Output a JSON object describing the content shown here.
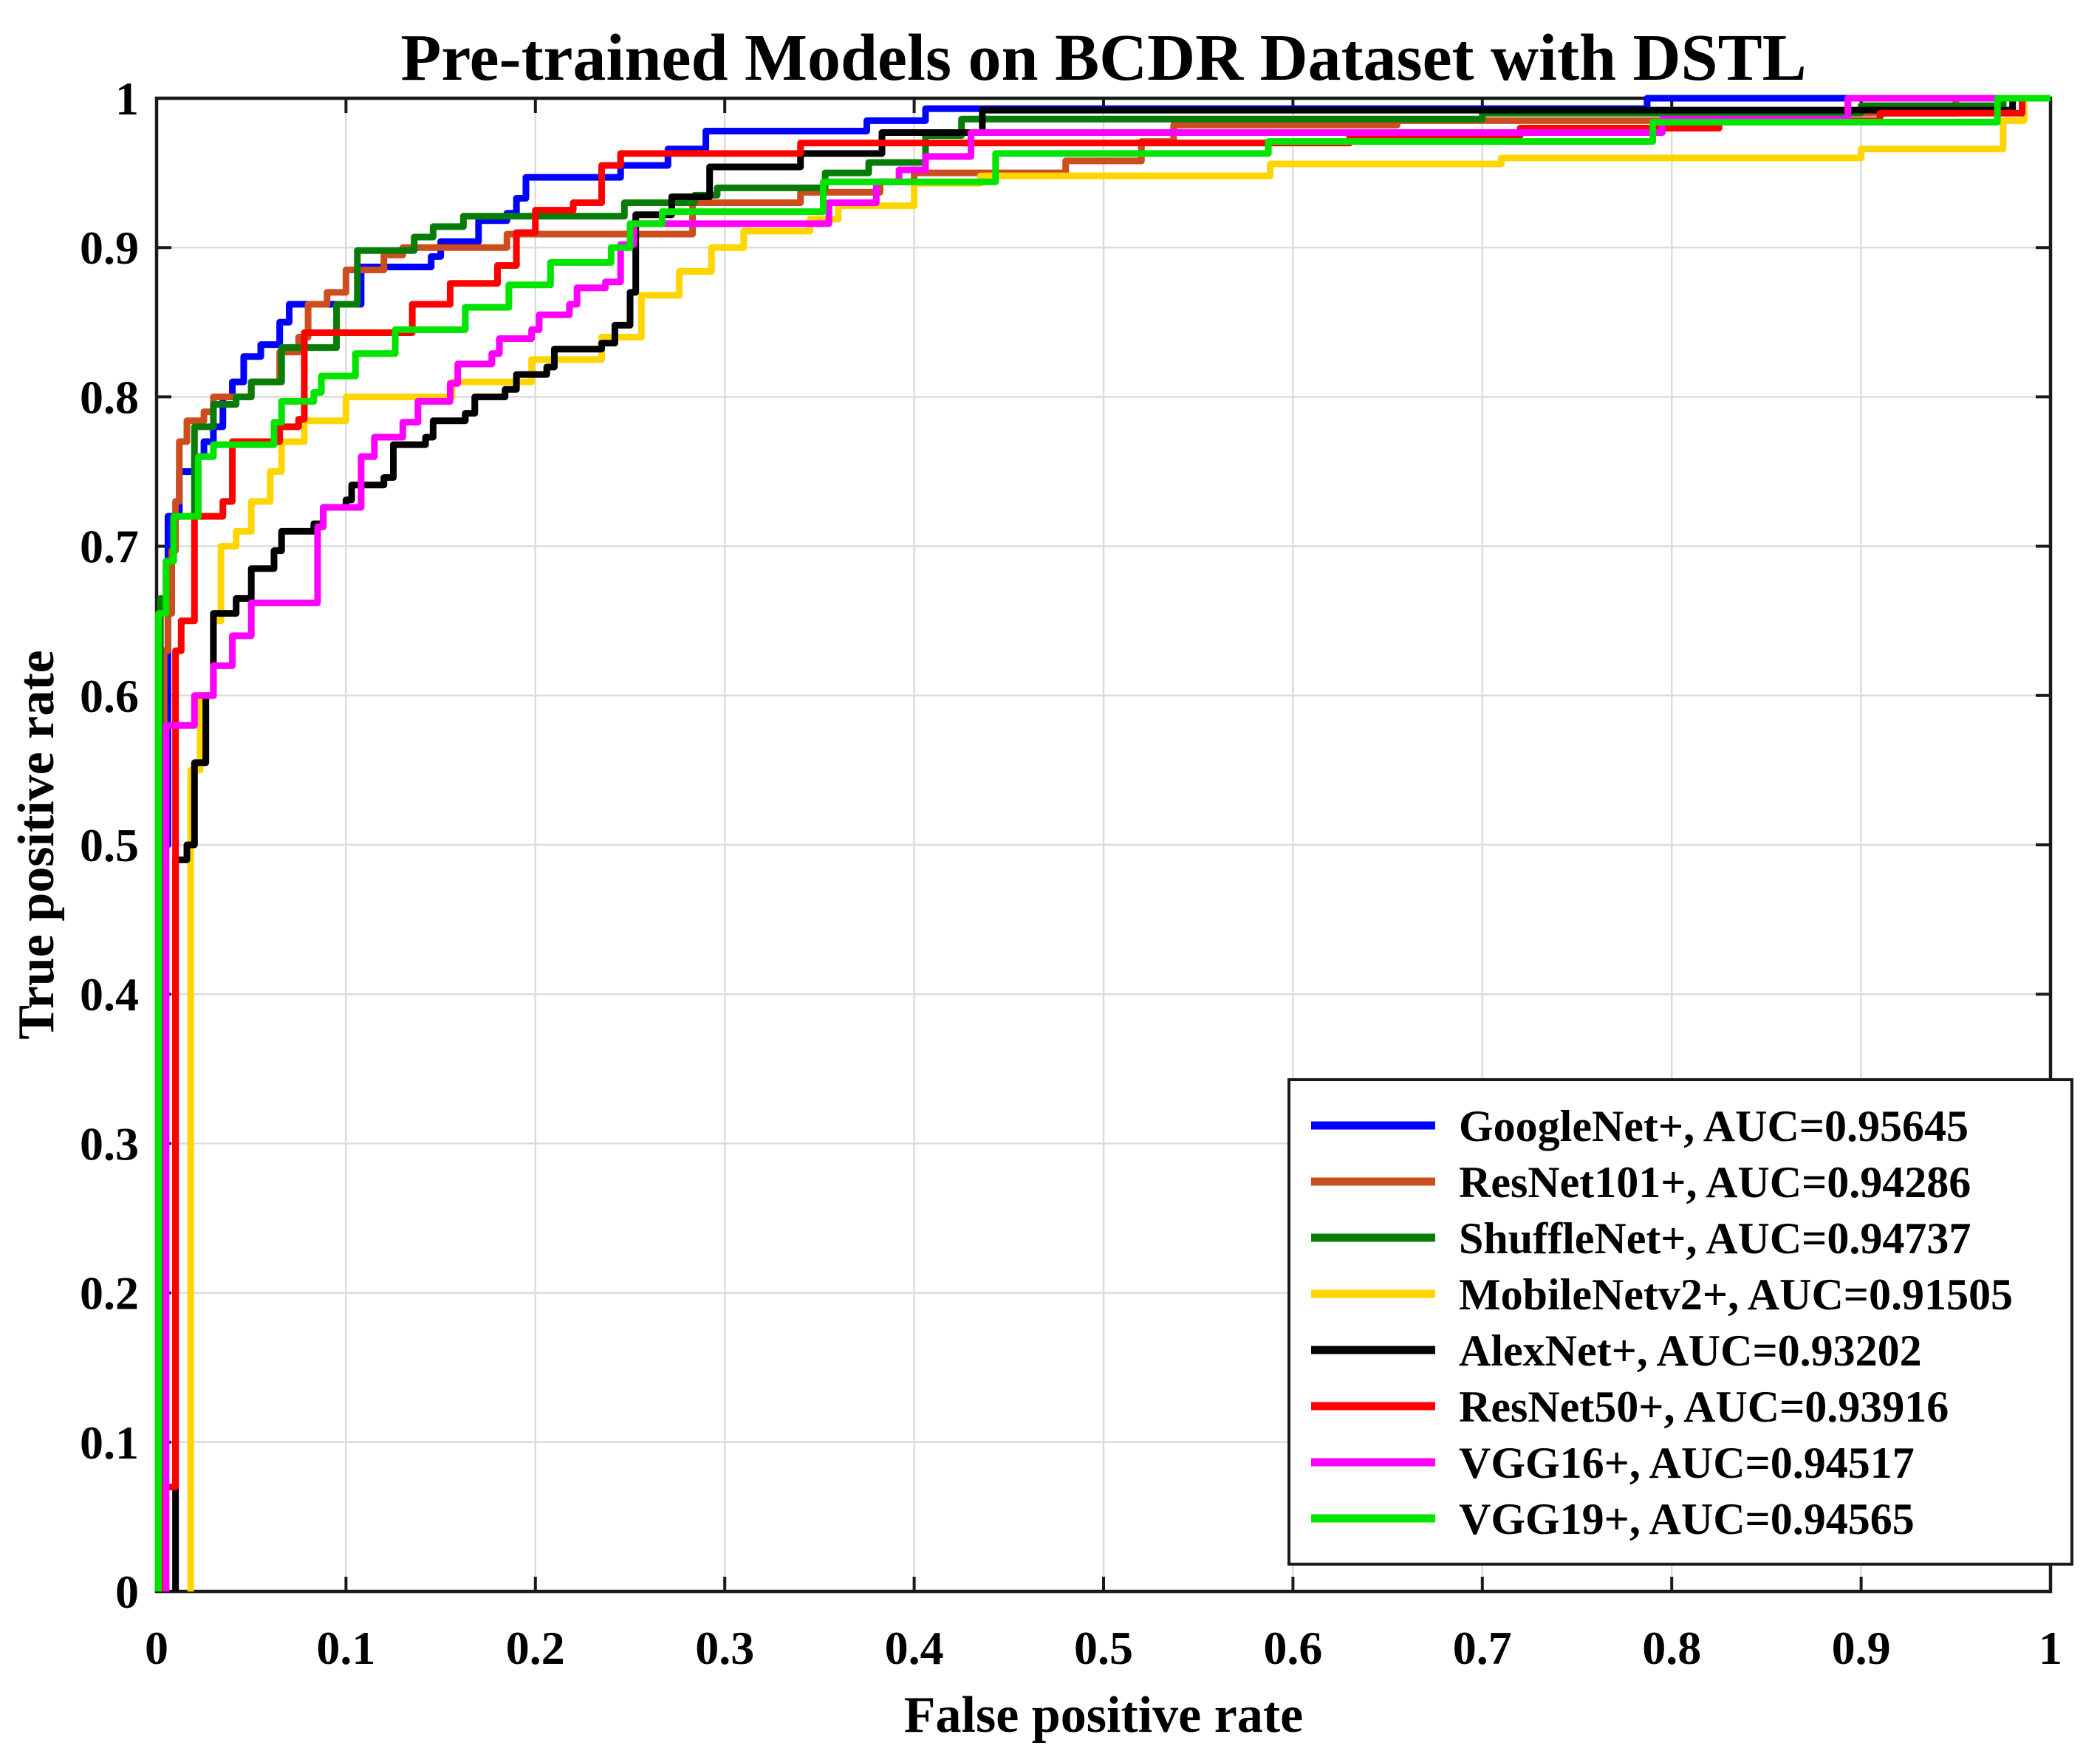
{
  "chart_data": {
    "type": "line",
    "variant": "roc-step-curves",
    "title": "Pre-trained Models on BCDR Dataset with DSTL",
    "xlabel": "False positive rate",
    "ylabel": "True positive rate",
    "xlim": [
      0,
      1
    ],
    "ylim": [
      0,
      1
    ],
    "grid": true,
    "grid_color": "#DCDCDC",
    "axis_color": "#1A1A1A",
    "background_color": "#FFFFFF",
    "legend_position": "lower-right",
    "xtick_labels": [
      "0",
      "0.1",
      "0.2",
      "0.3",
      "0.4",
      "0.5",
      "0.6",
      "0.7",
      "0.8",
      "0.9",
      "1"
    ],
    "ytick_labels": [
      "0",
      "0.1",
      "0.2",
      "0.3",
      "0.4",
      "0.5",
      "0.6",
      "0.7",
      "0.8",
      "0.9",
      "1"
    ],
    "xticks": [
      0,
      0.1,
      0.2,
      0.3,
      0.4,
      0.5,
      0.6,
      0.7,
      0.8,
      0.9,
      1
    ],
    "yticks": [
      0,
      0.1,
      0.2,
      0.3,
      0.4,
      0.5,
      0.6,
      0.7,
      0.8,
      0.9,
      1
    ],
    "series": [
      {
        "name": "GoogleNet+",
        "auc": "0.95645",
        "label": "GoogleNet+, AUC=0.95645",
        "color": "#0000FF",
        "points": [
          [
            0.003,
            0
          ],
          [
            0.003,
            0.5
          ],
          [
            0.006,
            0.72
          ],
          [
            0.012,
            0.75
          ],
          [
            0.02,
            0.76
          ],
          [
            0.025,
            0.77
          ],
          [
            0.03,
            0.78
          ],
          [
            0.035,
            0.8
          ],
          [
            0.04,
            0.81
          ],
          [
            0.046,
            0.827
          ],
          [
            0.055,
            0.835
          ],
          [
            0.065,
            0.85
          ],
          [
            0.07,
            0.862
          ],
          [
            0.108,
            0.887
          ],
          [
            0.145,
            0.894
          ],
          [
            0.15,
            0.904
          ],
          [
            0.17,
            0.918
          ],
          [
            0.185,
            0.923
          ],
          [
            0.19,
            0.933
          ],
          [
            0.195,
            0.947
          ],
          [
            0.245,
            0.955
          ],
          [
            0.27,
            0.966
          ],
          [
            0.29,
            0.978
          ],
          [
            0.375,
            0.985
          ],
          [
            0.406,
            0.993
          ],
          [
            0.787,
            1
          ]
        ]
      },
      {
        "name": "ResNet101+",
        "auc": "0.94286",
        "label": "ResNet101+, AUC=0.94286",
        "color": "#CC4E1F",
        "points": [
          [
            0.004,
            0
          ],
          [
            0.004,
            0.63
          ],
          [
            0.006,
            0.655
          ],
          [
            0.008,
            0.697
          ],
          [
            0.01,
            0.73
          ],
          [
            0.012,
            0.77
          ],
          [
            0.016,
            0.784
          ],
          [
            0.025,
            0.79
          ],
          [
            0.03,
            0.8
          ],
          [
            0.05,
            0.81
          ],
          [
            0.065,
            0.83
          ],
          [
            0.075,
            0.84
          ],
          [
            0.08,
            0.862
          ],
          [
            0.09,
            0.87
          ],
          [
            0.1,
            0.885
          ],
          [
            0.12,
            0.895
          ],
          [
            0.13,
            0.9
          ],
          [
            0.185,
            0.909
          ],
          [
            0.283,
            0.93
          ],
          [
            0.34,
            0.937
          ],
          [
            0.382,
            0.944
          ],
          [
            0.4,
            0.95
          ],
          [
            0.48,
            0.958
          ],
          [
            0.52,
            0.971
          ],
          [
            0.537,
            0.982
          ],
          [
            0.655,
            0.985
          ],
          [
            0.83,
            0.99
          ],
          [
            0.95,
            1
          ]
        ]
      },
      {
        "name": "ShuffleNet+",
        "auc": "0.94737",
        "label": "ShuffleNet+, AUC=0.94737",
        "color": "#077D07",
        "points": [
          [
            0.002,
            0
          ],
          [
            0.002,
            0.665
          ],
          [
            0.005,
            0.69
          ],
          [
            0.009,
            0.72
          ],
          [
            0.02,
            0.78
          ],
          [
            0.03,
            0.795
          ],
          [
            0.042,
            0.8
          ],
          [
            0.05,
            0.81
          ],
          [
            0.066,
            0.833
          ],
          [
            0.095,
            0.862
          ],
          [
            0.106,
            0.898
          ],
          [
            0.136,
            0.907
          ],
          [
            0.146,
            0.914
          ],
          [
            0.162,
            0.921
          ],
          [
            0.247,
            0.93
          ],
          [
            0.284,
            0.935
          ],
          [
            0.296,
            0.94
          ],
          [
            0.353,
            0.95
          ],
          [
            0.376,
            0.957
          ],
          [
            0.406,
            0.975
          ],
          [
            0.425,
            0.986
          ],
          [
            0.7,
            0.99
          ],
          [
            0.9,
            0.995
          ],
          [
            0.975,
            1
          ]
        ]
      },
      {
        "name": "MobileNetv2+",
        "auc": "0.91505",
        "label": "MobileNetv2+, AUC=0.91505",
        "color": "#FFD500",
        "points": [
          [
            0.018,
            0
          ],
          [
            0.018,
            0.55
          ],
          [
            0.023,
            0.6
          ],
          [
            0.03,
            0.65
          ],
          [
            0.034,
            0.7
          ],
          [
            0.042,
            0.71
          ],
          [
            0.05,
            0.73
          ],
          [
            0.06,
            0.75
          ],
          [
            0.066,
            0.77
          ],
          [
            0.078,
            0.784
          ],
          [
            0.1,
            0.8
          ],
          [
            0.156,
            0.81
          ],
          [
            0.198,
            0.825
          ],
          [
            0.235,
            0.84
          ],
          [
            0.256,
            0.868
          ],
          [
            0.276,
            0.884
          ],
          [
            0.293,
            0.9
          ],
          [
            0.31,
            0.911
          ],
          [
            0.345,
            0.919
          ],
          [
            0.36,
            0.928
          ],
          [
            0.4,
            0.943
          ],
          [
            0.435,
            0.948
          ],
          [
            0.588,
            0.956
          ],
          [
            0.71,
            0.96
          ],
          [
            0.9,
            0.966
          ],
          [
            0.975,
            0.985
          ],
          [
            0.986,
            1
          ]
        ]
      },
      {
        "name": "AlexNet+",
        "auc": "0.93202",
        "label": "AlexNet+, AUC=0.93202",
        "color": "#000000",
        "points": [
          [
            0.01,
            0
          ],
          [
            0.01,
            0.49
          ],
          [
            0.016,
            0.5
          ],
          [
            0.02,
            0.555
          ],
          [
            0.026,
            0.6
          ],
          [
            0.03,
            0.655
          ],
          [
            0.042,
            0.665
          ],
          [
            0.05,
            0.685
          ],
          [
            0.062,
            0.697
          ],
          [
            0.066,
            0.71
          ],
          [
            0.083,
            0.715
          ],
          [
            0.088,
            0.726
          ],
          [
            0.1,
            0.731
          ],
          [
            0.103,
            0.741
          ],
          [
            0.12,
            0.746
          ],
          [
            0.125,
            0.768
          ],
          [
            0.142,
            0.773
          ],
          [
            0.146,
            0.784
          ],
          [
            0.163,
            0.789
          ],
          [
            0.168,
            0.8
          ],
          [
            0.184,
            0.805
          ],
          [
            0.19,
            0.815
          ],
          [
            0.206,
            0.82
          ],
          [
            0.21,
            0.832
          ],
          [
            0.235,
            0.836
          ],
          [
            0.242,
            0.848
          ],
          [
            0.25,
            0.87
          ],
          [
            0.253,
            0.922
          ],
          [
            0.272,
            0.934
          ],
          [
            0.292,
            0.954
          ],
          [
            0.34,
            0.963
          ],
          [
            0.383,
            0.977
          ],
          [
            0.436,
            0.992
          ],
          [
            0.98,
            1
          ]
        ]
      },
      {
        "name": "ResNet50+",
        "auc": "0.93916",
        "label": "ResNet50+, AUC=0.93916",
        "color": "#FF0000",
        "points": [
          [
            0.004,
            0
          ],
          [
            0.004,
            0.07
          ],
          [
            0.01,
            0.63
          ],
          [
            0.013,
            0.65
          ],
          [
            0.02,
            0.72
          ],
          [
            0.035,
            0.73
          ],
          [
            0.04,
            0.77
          ],
          [
            0.065,
            0.78
          ],
          [
            0.075,
            0.785
          ],
          [
            0.078,
            0.843
          ],
          [
            0.135,
            0.862
          ],
          [
            0.155,
            0.876
          ],
          [
            0.18,
            0.888
          ],
          [
            0.19,
            0.91
          ],
          [
            0.2,
            0.925
          ],
          [
            0.22,
            0.93
          ],
          [
            0.235,
            0.955
          ],
          [
            0.245,
            0.963
          ],
          [
            0.34,
            0.97
          ],
          [
            0.63,
            0.975
          ],
          [
            0.72,
            0.98
          ],
          [
            0.825,
            0.985
          ],
          [
            0.91,
            0.99
          ],
          [
            0.985,
            1
          ]
        ]
      },
      {
        "name": "VGG16+",
        "auc": "0.94517",
        "label": "VGG16+, AUC=0.94517",
        "color": "#FF00FF",
        "points": [
          [
            0.005,
            0
          ],
          [
            0.005,
            0.58
          ],
          [
            0.02,
            0.6
          ],
          [
            0.03,
            0.62
          ],
          [
            0.04,
            0.64
          ],
          [
            0.05,
            0.662
          ],
          [
            0.085,
            0.713
          ],
          [
            0.088,
            0.726
          ],
          [
            0.108,
            0.76
          ],
          [
            0.115,
            0.773
          ],
          [
            0.13,
            0.783
          ],
          [
            0.138,
            0.797
          ],
          [
            0.155,
            0.809
          ],
          [
            0.159,
            0.822
          ],
          [
            0.177,
            0.829
          ],
          [
            0.181,
            0.839
          ],
          [
            0.198,
            0.845
          ],
          [
            0.202,
            0.855
          ],
          [
            0.218,
            0.862
          ],
          [
            0.222,
            0.873
          ],
          [
            0.237,
            0.877
          ],
          [
            0.245,
            0.902
          ],
          [
            0.252,
            0.916
          ],
          [
            0.355,
            0.93
          ],
          [
            0.38,
            0.944
          ],
          [
            0.392,
            0.952
          ],
          [
            0.406,
            0.961
          ],
          [
            0.43,
            0.977
          ],
          [
            0.795,
            0.986
          ],
          [
            0.893,
            1
          ]
        ]
      },
      {
        "name": "VGG19+",
        "auc": "0.94565",
        "label": "VGG19+, AUC=0.94565",
        "color": "#00E400",
        "points": [
          [
            0.001,
            0
          ],
          [
            0.001,
            0.655
          ],
          [
            0.005,
            0.69
          ],
          [
            0.009,
            0.72
          ],
          [
            0.022,
            0.76
          ],
          [
            0.03,
            0.768
          ],
          [
            0.062,
            0.783
          ],
          [
            0.066,
            0.797
          ],
          [
            0.083,
            0.803
          ],
          [
            0.087,
            0.814
          ],
          [
            0.105,
            0.829
          ],
          [
            0.126,
            0.845
          ],
          [
            0.163,
            0.86
          ],
          [
            0.186,
            0.875
          ],
          [
            0.208,
            0.89
          ],
          [
            0.24,
            0.9
          ],
          [
            0.25,
            0.916
          ],
          [
            0.267,
            0.924
          ],
          [
            0.352,
            0.944
          ],
          [
            0.443,
            0.963
          ],
          [
            0.587,
            0.971
          ],
          [
            0.79,
            0.984
          ],
          [
            0.972,
            1
          ]
        ]
      }
    ]
  }
}
